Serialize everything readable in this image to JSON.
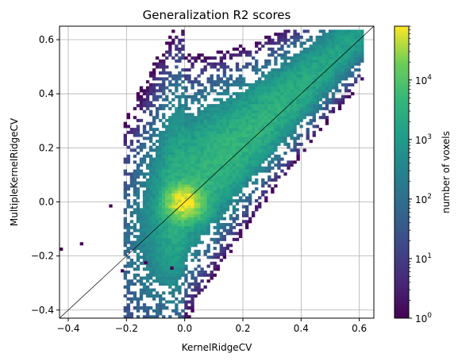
{
  "chart_data": {
    "type": "heatmap",
    "title": "Generalization R2 scores",
    "xlabel": "KernelRidgeCV",
    "ylabel": "MultipleKernelRidgeCV",
    "xlim": [
      -0.43,
      0.65
    ],
    "ylim": [
      -0.43,
      0.65
    ],
    "x_ticks": [
      -0.4,
      -0.2,
      0.0,
      0.2,
      0.4,
      0.6
    ],
    "x_tick_labels": [
      "−0.4",
      "−0.2",
      "0.0",
      "0.2",
      "0.4",
      "0.6"
    ],
    "y_ticks": [
      -0.4,
      -0.2,
      0.0,
      0.2,
      0.4,
      0.6
    ],
    "y_tick_labels": [
      "−0.4",
      "−0.2",
      "0.0",
      "0.2",
      "0.4",
      "0.6"
    ],
    "grid": true,
    "reference_line": "identity (y = x)",
    "colormap": "viridis",
    "color_scale": "log",
    "colorbar": {
      "label": "number of voxels",
      "range": [
        1,
        80000
      ],
      "ticks": [
        1,
        10,
        100,
        1000,
        10000
      ],
      "tick_labels": [
        {
          "base": "10",
          "exp": "0"
        },
        {
          "base": "10",
          "exp": "1"
        },
        {
          "base": "10",
          "exp": "2"
        },
        {
          "base": "10",
          "exp": "3"
        },
        {
          "base": "10",
          "exp": "4"
        }
      ]
    },
    "distribution": {
      "bin_size": 0.011,
      "peak_location": [
        0.0,
        0.0
      ],
      "peak_count": 80000,
      "main_ridge": "points concentrated along y = x, slightly above the diagonal, from about 0 to 0.6",
      "outliers": [
        {
          "x": -0.43,
          "y": -0.18
        },
        {
          "x": -0.36,
          "y": -0.16
        },
        {
          "x": -0.26,
          "y": -0.02
        },
        {
          "x": -0.22,
          "y": -0.26
        },
        {
          "x": -0.14,
          "y": -0.23
        },
        {
          "x": -0.05,
          "y": -0.25
        }
      ]
    }
  }
}
